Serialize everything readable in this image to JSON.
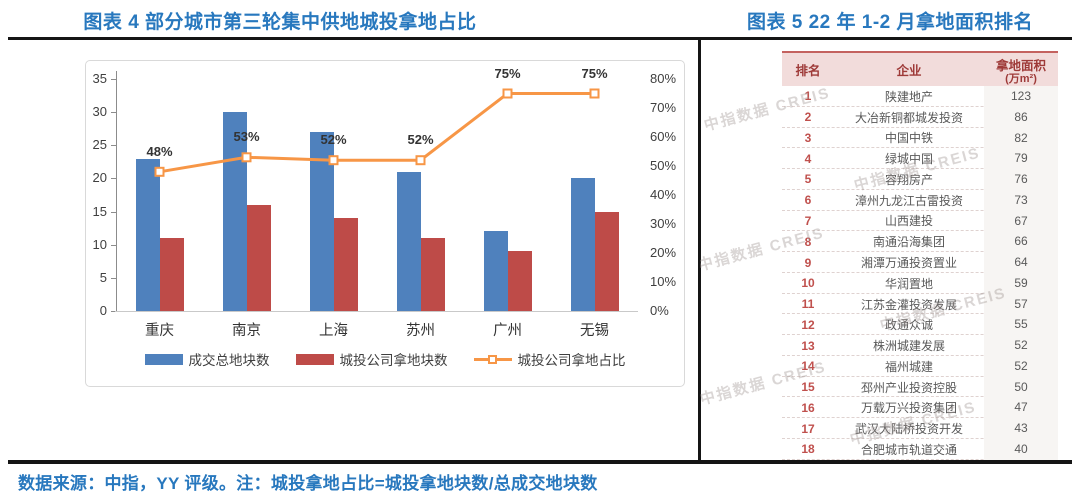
{
  "page": {
    "footer_note": "数据来源：中指，YY 评级。注：城投拿地占比=城投拿地块数/总成交地块数"
  },
  "left_panel": {
    "title": "图表 4 部分城市第三轮集中供地城投拿地占比"
  },
  "right_panel": {
    "title": "图表 5 22 年 1-2 月拿地面积排名",
    "watermark": "中指数据 CREIS"
  },
  "chart_data": [
    {
      "type": "bar",
      "title": "部分城市第三轮集中供地城投拿地占比",
      "categories": [
        "重庆",
        "南京",
        "上海",
        "苏州",
        "广州",
        "无锡"
      ],
      "series": [
        {
          "name": "成交总地块数",
          "kind": "bar",
          "axis": "left",
          "color": "#4F81BD",
          "values": [
            23,
            30,
            27,
            21,
            12,
            20
          ]
        },
        {
          "name": "城投公司拿地块数",
          "kind": "bar",
          "axis": "left",
          "color": "#BE4B48",
          "values": [
            11,
            16,
            14,
            11,
            9,
            15
          ]
        },
        {
          "name": "城投公司拿地占比",
          "kind": "line",
          "axis": "right",
          "color": "#F79646",
          "values": [
            48,
            53,
            52,
            52,
            75,
            75
          ],
          "labels": [
            "48%",
            "53%",
            "52%",
            "52%",
            "75%",
            "75%"
          ]
        }
      ],
      "left_axis": {
        "min": 0,
        "max": 35,
        "step": 5,
        "suffix": ""
      },
      "right_axis": {
        "min": 0,
        "max": 80,
        "step": 10,
        "suffix": "%"
      },
      "legend_position": "bottom",
      "grid": false
    },
    {
      "type": "table",
      "title": "22 年 1-2 月拿地面积排名",
      "columns": [
        {
          "label": "排名"
        },
        {
          "label": "企业"
        },
        {
          "label": "拿地面积",
          "sublabel": "(万m²)"
        }
      ],
      "rows": [
        {
          "rank": 1,
          "company": "陕建地产",
          "area": 123
        },
        {
          "rank": 2,
          "company": "大冶新铜都城发投资",
          "area": 86
        },
        {
          "rank": 3,
          "company": "中国中铁",
          "area": 82
        },
        {
          "rank": 4,
          "company": "绿城中国",
          "area": 79
        },
        {
          "rank": 5,
          "company": "容翔房产",
          "area": 76
        },
        {
          "rank": 6,
          "company": "漳州九龙江古雷投资",
          "area": 73
        },
        {
          "rank": 7,
          "company": "山西建投",
          "area": 67
        },
        {
          "rank": 8,
          "company": "南通沿海集团",
          "area": 66
        },
        {
          "rank": 9,
          "company": "湘潭万通投资置业",
          "area": 64
        },
        {
          "rank": 10,
          "company": "华润置地",
          "area": 59
        },
        {
          "rank": 11,
          "company": "江苏金灌投资发展",
          "area": 57
        },
        {
          "rank": 12,
          "company": "政通众诚",
          "area": 55
        },
        {
          "rank": 13,
          "company": "株洲城建发展",
          "area": 52
        },
        {
          "rank": 14,
          "company": "福州城建",
          "area": 52
        },
        {
          "rank": 15,
          "company": "邳州产业投资控股",
          "area": 50
        },
        {
          "rank": 16,
          "company": "万载万兴投资集团",
          "area": 47
        },
        {
          "rank": 17,
          "company": "武汉大陆桥投资开发",
          "area": 43
        },
        {
          "rank": 18,
          "company": "合肥城市轨道交通",
          "area": 40
        }
      ]
    }
  ],
  "colors": {
    "title_blue": "#2878BE",
    "bar_blue": "#4F81BD",
    "bar_red": "#BE4B48",
    "line_orange": "#F79646",
    "table_header_bg": "#F2DCDB",
    "table_header_text": "#9E3A38",
    "rank_red": "#C0504D",
    "rule_black": "#151515"
  }
}
